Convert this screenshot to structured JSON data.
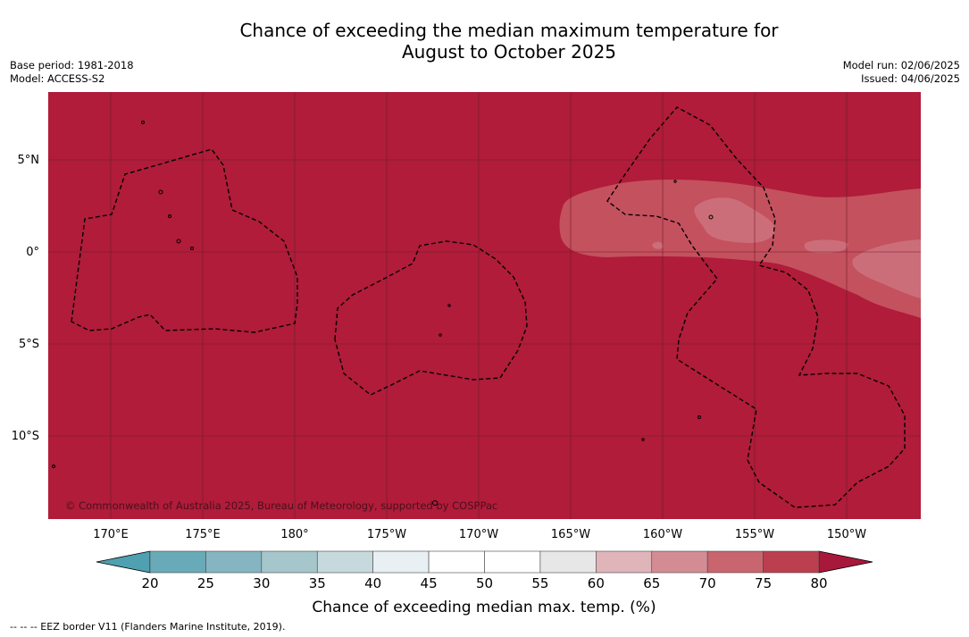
{
  "title_line1": "Chance of exceeding the median maximum temperature for",
  "title_line2": "August to October 2025",
  "base_period": "Base period: 1981-2018",
  "model": "Model: ACCESS-S2",
  "model_run": "Model run: 02/06/2025",
  "issued": "Issued: 04/06/2025",
  "map": {
    "lat_labels": [
      "5°N",
      "0°",
      "5°S",
      "10°S"
    ],
    "lon_labels": [
      "170°E",
      "175°E",
      "180°",
      "175°W",
      "170°W",
      "165°W",
      "160°W",
      "155°W",
      "150°W"
    ],
    "copyright": "© Commonwealth of Australia 2025, Bureau of Meteorology, supported by COSPPac",
    "colors": {
      "fill_80plus": "#b01c3a",
      "band_70_75": "#c4515e",
      "band_65_70": "#cc6e79",
      "eez_border": "#000000"
    }
  },
  "colorbar": {
    "ticks": [
      "20",
      "25",
      "30",
      "35",
      "40",
      "45",
      "50",
      "55",
      "60",
      "65",
      "70",
      "75",
      "80"
    ],
    "colors": [
      "#69aab9",
      "#85b5c1",
      "#a5c7cc",
      "#c6dadd",
      "#e9f0f3",
      "#ffffff",
      "#ffffff",
      "#e7e7e7",
      "#dfb5ba",
      "#d48c94",
      "#c8656f",
      "#bb3f4f"
    ],
    "under_color": "#4fa0b0",
    "over_color": "#a8183a",
    "label": "Chance of exceeding median max. temp. (%)"
  },
  "footer": "--  --  -- EEZ border V11 (Flanders Marine Institute, 2019)."
}
